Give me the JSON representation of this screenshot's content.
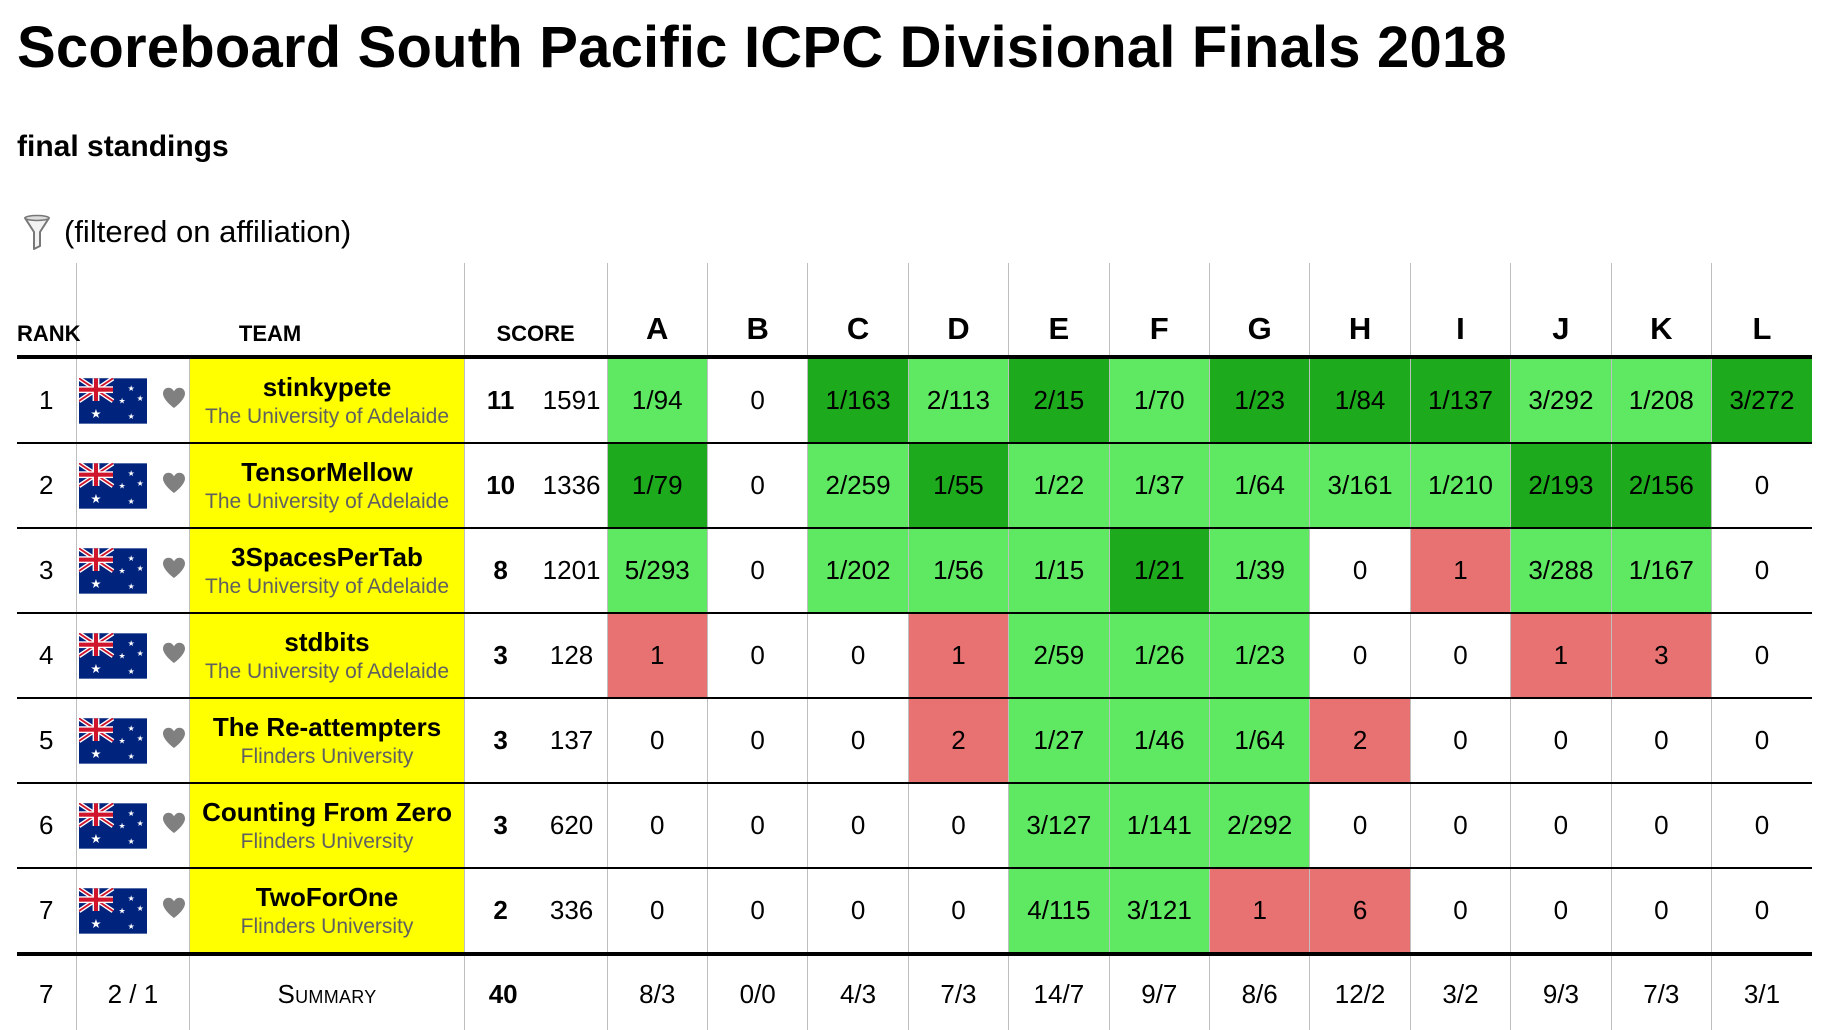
{
  "page": {
    "title": "Scoreboard South Pacific ICPC Divisional Finals 2018",
    "subtitle": "final standings",
    "filter_note": "(filtered on affiliation)"
  },
  "colors": {
    "team_highlight": "#ffff00",
    "solved": "#5fe862",
    "first_to_solve": "#1daa1d",
    "failed": "#e87272",
    "heart": "#808080"
  },
  "icons": {
    "filter": "funnel-icon",
    "flag": "australia-flag-icon",
    "favourite": "heart-icon"
  },
  "table": {
    "headers": {
      "rank": "RANK",
      "team": "TEAM",
      "score": "SCORE",
      "problems": [
        "A",
        "B",
        "C",
        "D",
        "E",
        "F",
        "G",
        "H",
        "I",
        "J",
        "K",
        "L"
      ]
    },
    "rows": [
      {
        "rank": "1",
        "team": "stinkypete",
        "affiliation": "The University of Adelaide",
        "solved": "11",
        "points": "1591",
        "cells": [
          {
            "text": "1/94",
            "state": "solved"
          },
          {
            "text": "0",
            "state": "empty"
          },
          {
            "text": "1/163",
            "state": "first"
          },
          {
            "text": "2/113",
            "state": "solved"
          },
          {
            "text": "2/15",
            "state": "first"
          },
          {
            "text": "1/70",
            "state": "solved"
          },
          {
            "text": "1/23",
            "state": "first"
          },
          {
            "text": "1/84",
            "state": "first"
          },
          {
            "text": "1/137",
            "state": "first"
          },
          {
            "text": "3/292",
            "state": "solved"
          },
          {
            "text": "1/208",
            "state": "solved"
          },
          {
            "text": "3/272",
            "state": "first"
          }
        ]
      },
      {
        "rank": "2",
        "team": "TensorMellow",
        "affiliation": "The University of Adelaide",
        "solved": "10",
        "points": "1336",
        "cells": [
          {
            "text": "1/79",
            "state": "first"
          },
          {
            "text": "0",
            "state": "empty"
          },
          {
            "text": "2/259",
            "state": "solved"
          },
          {
            "text": "1/55",
            "state": "first"
          },
          {
            "text": "1/22",
            "state": "solved"
          },
          {
            "text": "1/37",
            "state": "solved"
          },
          {
            "text": "1/64",
            "state": "solved"
          },
          {
            "text": "3/161",
            "state": "solved"
          },
          {
            "text": "1/210",
            "state": "solved"
          },
          {
            "text": "2/193",
            "state": "first"
          },
          {
            "text": "2/156",
            "state": "first"
          },
          {
            "text": "0",
            "state": "empty"
          }
        ]
      },
      {
        "rank": "3",
        "team": "3SpacesPerTab",
        "affiliation": "The University of Adelaide",
        "solved": "8",
        "points": "1201",
        "cells": [
          {
            "text": "5/293",
            "state": "solved"
          },
          {
            "text": "0",
            "state": "empty"
          },
          {
            "text": "1/202",
            "state": "solved"
          },
          {
            "text": "1/56",
            "state": "solved"
          },
          {
            "text": "1/15",
            "state": "solved"
          },
          {
            "text": "1/21",
            "state": "first"
          },
          {
            "text": "1/39",
            "state": "solved"
          },
          {
            "text": "0",
            "state": "empty"
          },
          {
            "text": "1",
            "state": "fail"
          },
          {
            "text": "3/288",
            "state": "solved"
          },
          {
            "text": "1/167",
            "state": "solved"
          },
          {
            "text": "0",
            "state": "empty"
          }
        ]
      },
      {
        "rank": "4",
        "team": "stdbits",
        "affiliation": "The University of Adelaide",
        "solved": "3",
        "points": "128",
        "cells": [
          {
            "text": "1",
            "state": "fail"
          },
          {
            "text": "0",
            "state": "empty"
          },
          {
            "text": "0",
            "state": "empty"
          },
          {
            "text": "1",
            "state": "fail"
          },
          {
            "text": "2/59",
            "state": "solved"
          },
          {
            "text": "1/26",
            "state": "solved"
          },
          {
            "text": "1/23",
            "state": "solved"
          },
          {
            "text": "0",
            "state": "empty"
          },
          {
            "text": "0",
            "state": "empty"
          },
          {
            "text": "1",
            "state": "fail"
          },
          {
            "text": "3",
            "state": "fail"
          },
          {
            "text": "0",
            "state": "empty"
          }
        ]
      },
      {
        "rank": "5",
        "team": "The Re-attempters",
        "affiliation": "Flinders University",
        "solved": "3",
        "points": "137",
        "cells": [
          {
            "text": "0",
            "state": "empty"
          },
          {
            "text": "0",
            "state": "empty"
          },
          {
            "text": "0",
            "state": "empty"
          },
          {
            "text": "2",
            "state": "fail"
          },
          {
            "text": "1/27",
            "state": "solved"
          },
          {
            "text": "1/46",
            "state": "solved"
          },
          {
            "text": "1/64",
            "state": "solved"
          },
          {
            "text": "2",
            "state": "fail"
          },
          {
            "text": "0",
            "state": "empty"
          },
          {
            "text": "0",
            "state": "empty"
          },
          {
            "text": "0",
            "state": "empty"
          },
          {
            "text": "0",
            "state": "empty"
          }
        ]
      },
      {
        "rank": "6",
        "team": "Counting From Zero",
        "affiliation": "Flinders University",
        "solved": "3",
        "points": "620",
        "cells": [
          {
            "text": "0",
            "state": "empty"
          },
          {
            "text": "0",
            "state": "empty"
          },
          {
            "text": "0",
            "state": "empty"
          },
          {
            "text": "0",
            "state": "empty"
          },
          {
            "text": "3/127",
            "state": "solved"
          },
          {
            "text": "1/141",
            "state": "solved"
          },
          {
            "text": "2/292",
            "state": "solved"
          },
          {
            "text": "0",
            "state": "empty"
          },
          {
            "text": "0",
            "state": "empty"
          },
          {
            "text": "0",
            "state": "empty"
          },
          {
            "text": "0",
            "state": "empty"
          },
          {
            "text": "0",
            "state": "empty"
          }
        ]
      },
      {
        "rank": "7",
        "team": "TwoForOne",
        "affiliation": "Flinders University",
        "solved": "2",
        "points": "336",
        "cells": [
          {
            "text": "0",
            "state": "empty"
          },
          {
            "text": "0",
            "state": "empty"
          },
          {
            "text": "0",
            "state": "empty"
          },
          {
            "text": "0",
            "state": "empty"
          },
          {
            "text": "4/115",
            "state": "solved"
          },
          {
            "text": "3/121",
            "state": "solved"
          },
          {
            "text": "1",
            "state": "fail"
          },
          {
            "text": "6",
            "state": "fail"
          },
          {
            "text": "0",
            "state": "empty"
          },
          {
            "text": "0",
            "state": "empty"
          },
          {
            "text": "0",
            "state": "empty"
          },
          {
            "text": "0",
            "state": "empty"
          }
        ]
      }
    ],
    "summary": {
      "rank": "7",
      "flags": "2 / 1",
      "label": "Summary",
      "total_solved": "40",
      "problems": [
        "8/3",
        "0/0",
        "4/3",
        "7/3",
        "14/7",
        "9/7",
        "8/6",
        "12/2",
        "3/2",
        "9/3",
        "7/3",
        "3/1"
      ]
    }
  }
}
